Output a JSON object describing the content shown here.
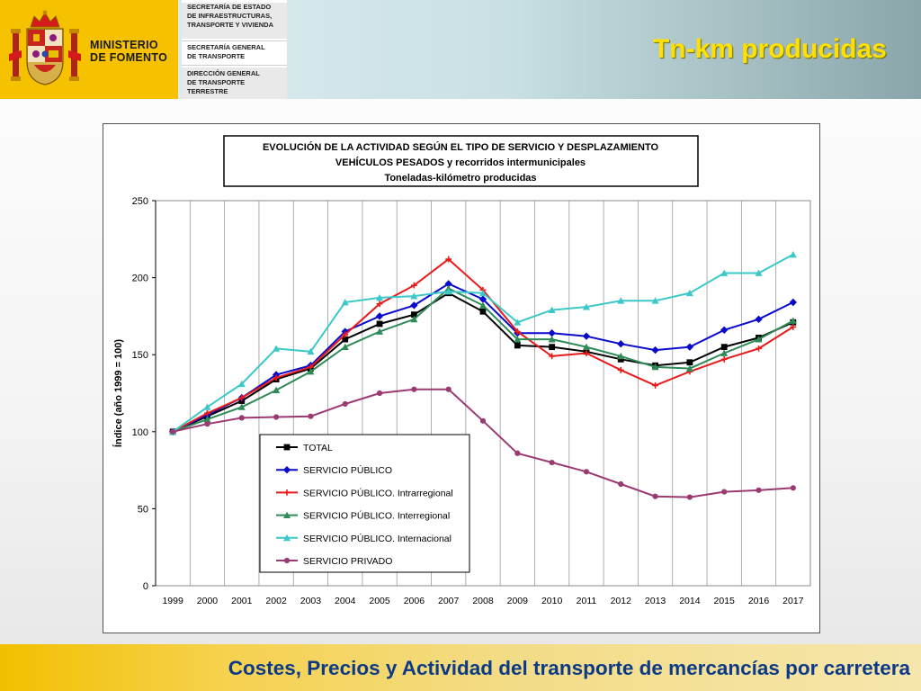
{
  "header": {
    "ministry_line1": "MINISTERIO",
    "ministry_line2": "DE FOMENTO",
    "departments": [
      [
        "SECRETARÍA DE ESTADO",
        "DE INFRAESTRUCTURAS,",
        "TRANSPORTE Y VIVIENDA"
      ],
      [
        "SECRETARÍA GENERAL",
        "DE TRANSPORTE"
      ],
      [
        "DIRECCIÓN GENERAL",
        "DE TRANSPORTE",
        "TERRESTRE"
      ]
    ],
    "slide_title": "Tn-km producidas"
  },
  "footer": {
    "text": "Costes, Precios y Actividad del transporte de mercancías por carretera"
  },
  "colors": {
    "crest_yellow": "#f6c200",
    "title_yellow": "#ffe000",
    "footer_blue": "#0d3a86"
  },
  "icons": [
    "coat-of-arms-icon"
  ],
  "chart_data": {
    "type": "line",
    "title_lines": [
      "EVOLUCIÓN  DE  LA  ACTIVIDAD  SEGÚN  EL  TIPO  DE  SERVICIO  Y  DESPLAZAMIENTO",
      "VEHÍCULOS  PESADOS  y  recorridos  intermunicipales",
      "Toneladas-kilómetro producidas"
    ],
    "ylabel": "Índice (año 1999 = 100)",
    "xlabel": "",
    "ylim": [
      0,
      250
    ],
    "yticks": [
      0,
      50,
      100,
      150,
      200,
      250
    ],
    "grid": "vertical",
    "legend_position": "lower-center",
    "categories": [
      "1999",
      "2000",
      "2001",
      "2002",
      "2003",
      "2004",
      "2005",
      "2006",
      "2007",
      "2008",
      "2009",
      "2010",
      "2011",
      "2012",
      "2013",
      "2014",
      "2015",
      "2016",
      "2017"
    ],
    "series": [
      {
        "name": "TOTAL",
        "color": "#000000",
        "marker": "square",
        "values": [
          100,
          110,
          120,
          134,
          141,
          160,
          170,
          176,
          190,
          178,
          156,
          155,
          152,
          147,
          143,
          145,
          155,
          161,
          171
        ]
      },
      {
        "name": "SERVICIO PÚBLICO",
        "color": "#0a0acc",
        "marker": "diamond",
        "values": [
          100,
          111,
          122,
          137,
          143,
          165,
          175,
          182,
          196,
          186,
          164,
          164,
          162,
          157,
          153,
          155,
          166,
          173,
          184
        ]
      },
      {
        "name": "SERVICIO PÚBLICO. Intrarregional",
        "color": "#e81a1a",
        "marker": "plus",
        "values": [
          100,
          112,
          122,
          135,
          142,
          163,
          183,
          195,
          212,
          192,
          165,
          149,
          151,
          140,
          130,
          139,
          147,
          154,
          168
        ]
      },
      {
        "name": "SERVICIO PÚBLICO. Interregional",
        "color": "#2e8b57",
        "marker": "triangle",
        "values": [
          100,
          108,
          116,
          127,
          139,
          155,
          165,
          173,
          193,
          182,
          160,
          160,
          155,
          149,
          142,
          141,
          151,
          160,
          172
        ]
      },
      {
        "name": "SERVICIO PÚBLICO. Internacional",
        "color": "#3cc8c8",
        "marker": "triangle",
        "values": [
          100,
          116,
          131,
          154,
          152,
          184,
          187,
          188,
          191,
          190,
          171,
          179,
          181,
          185,
          185,
          190,
          203,
          203,
          215
        ]
      },
      {
        "name": "SERVICIO PRIVADO",
        "color": "#9b3a72",
        "marker": "circle",
        "values": [
          100,
          105,
          109,
          109.5,
          110,
          118,
          125,
          127.5,
          127.5,
          107,
          86,
          80,
          74,
          66,
          58,
          57.5,
          61,
          62,
          63.5
        ]
      }
    ]
  }
}
